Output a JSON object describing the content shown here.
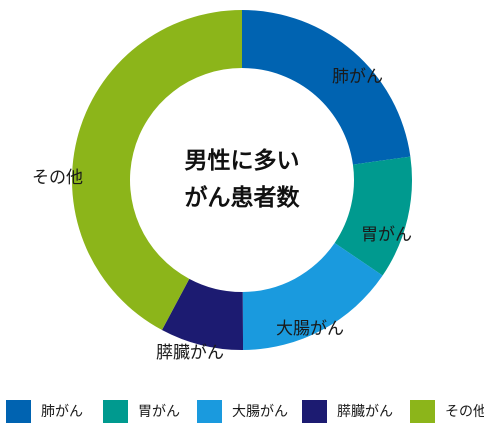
{
  "chart_data": {
    "type": "pie",
    "title": "男性に多いがん患者数",
    "title_lines": [
      "男性に多い",
      "がん患者数"
    ],
    "categories": [
      "肺がん",
      "胃がん",
      "大腸がん",
      "膵臓がん",
      "その他"
    ],
    "values": [
      22.8,
      11.7,
      15.4,
      7.9,
      42.2
    ],
    "unit": "%",
    "colors": [
      "#0063b1",
      "#009a8f",
      "#1a9ade",
      "#1c1b71",
      "#8cb51a"
    ],
    "legend_position": "bottom"
  }
}
